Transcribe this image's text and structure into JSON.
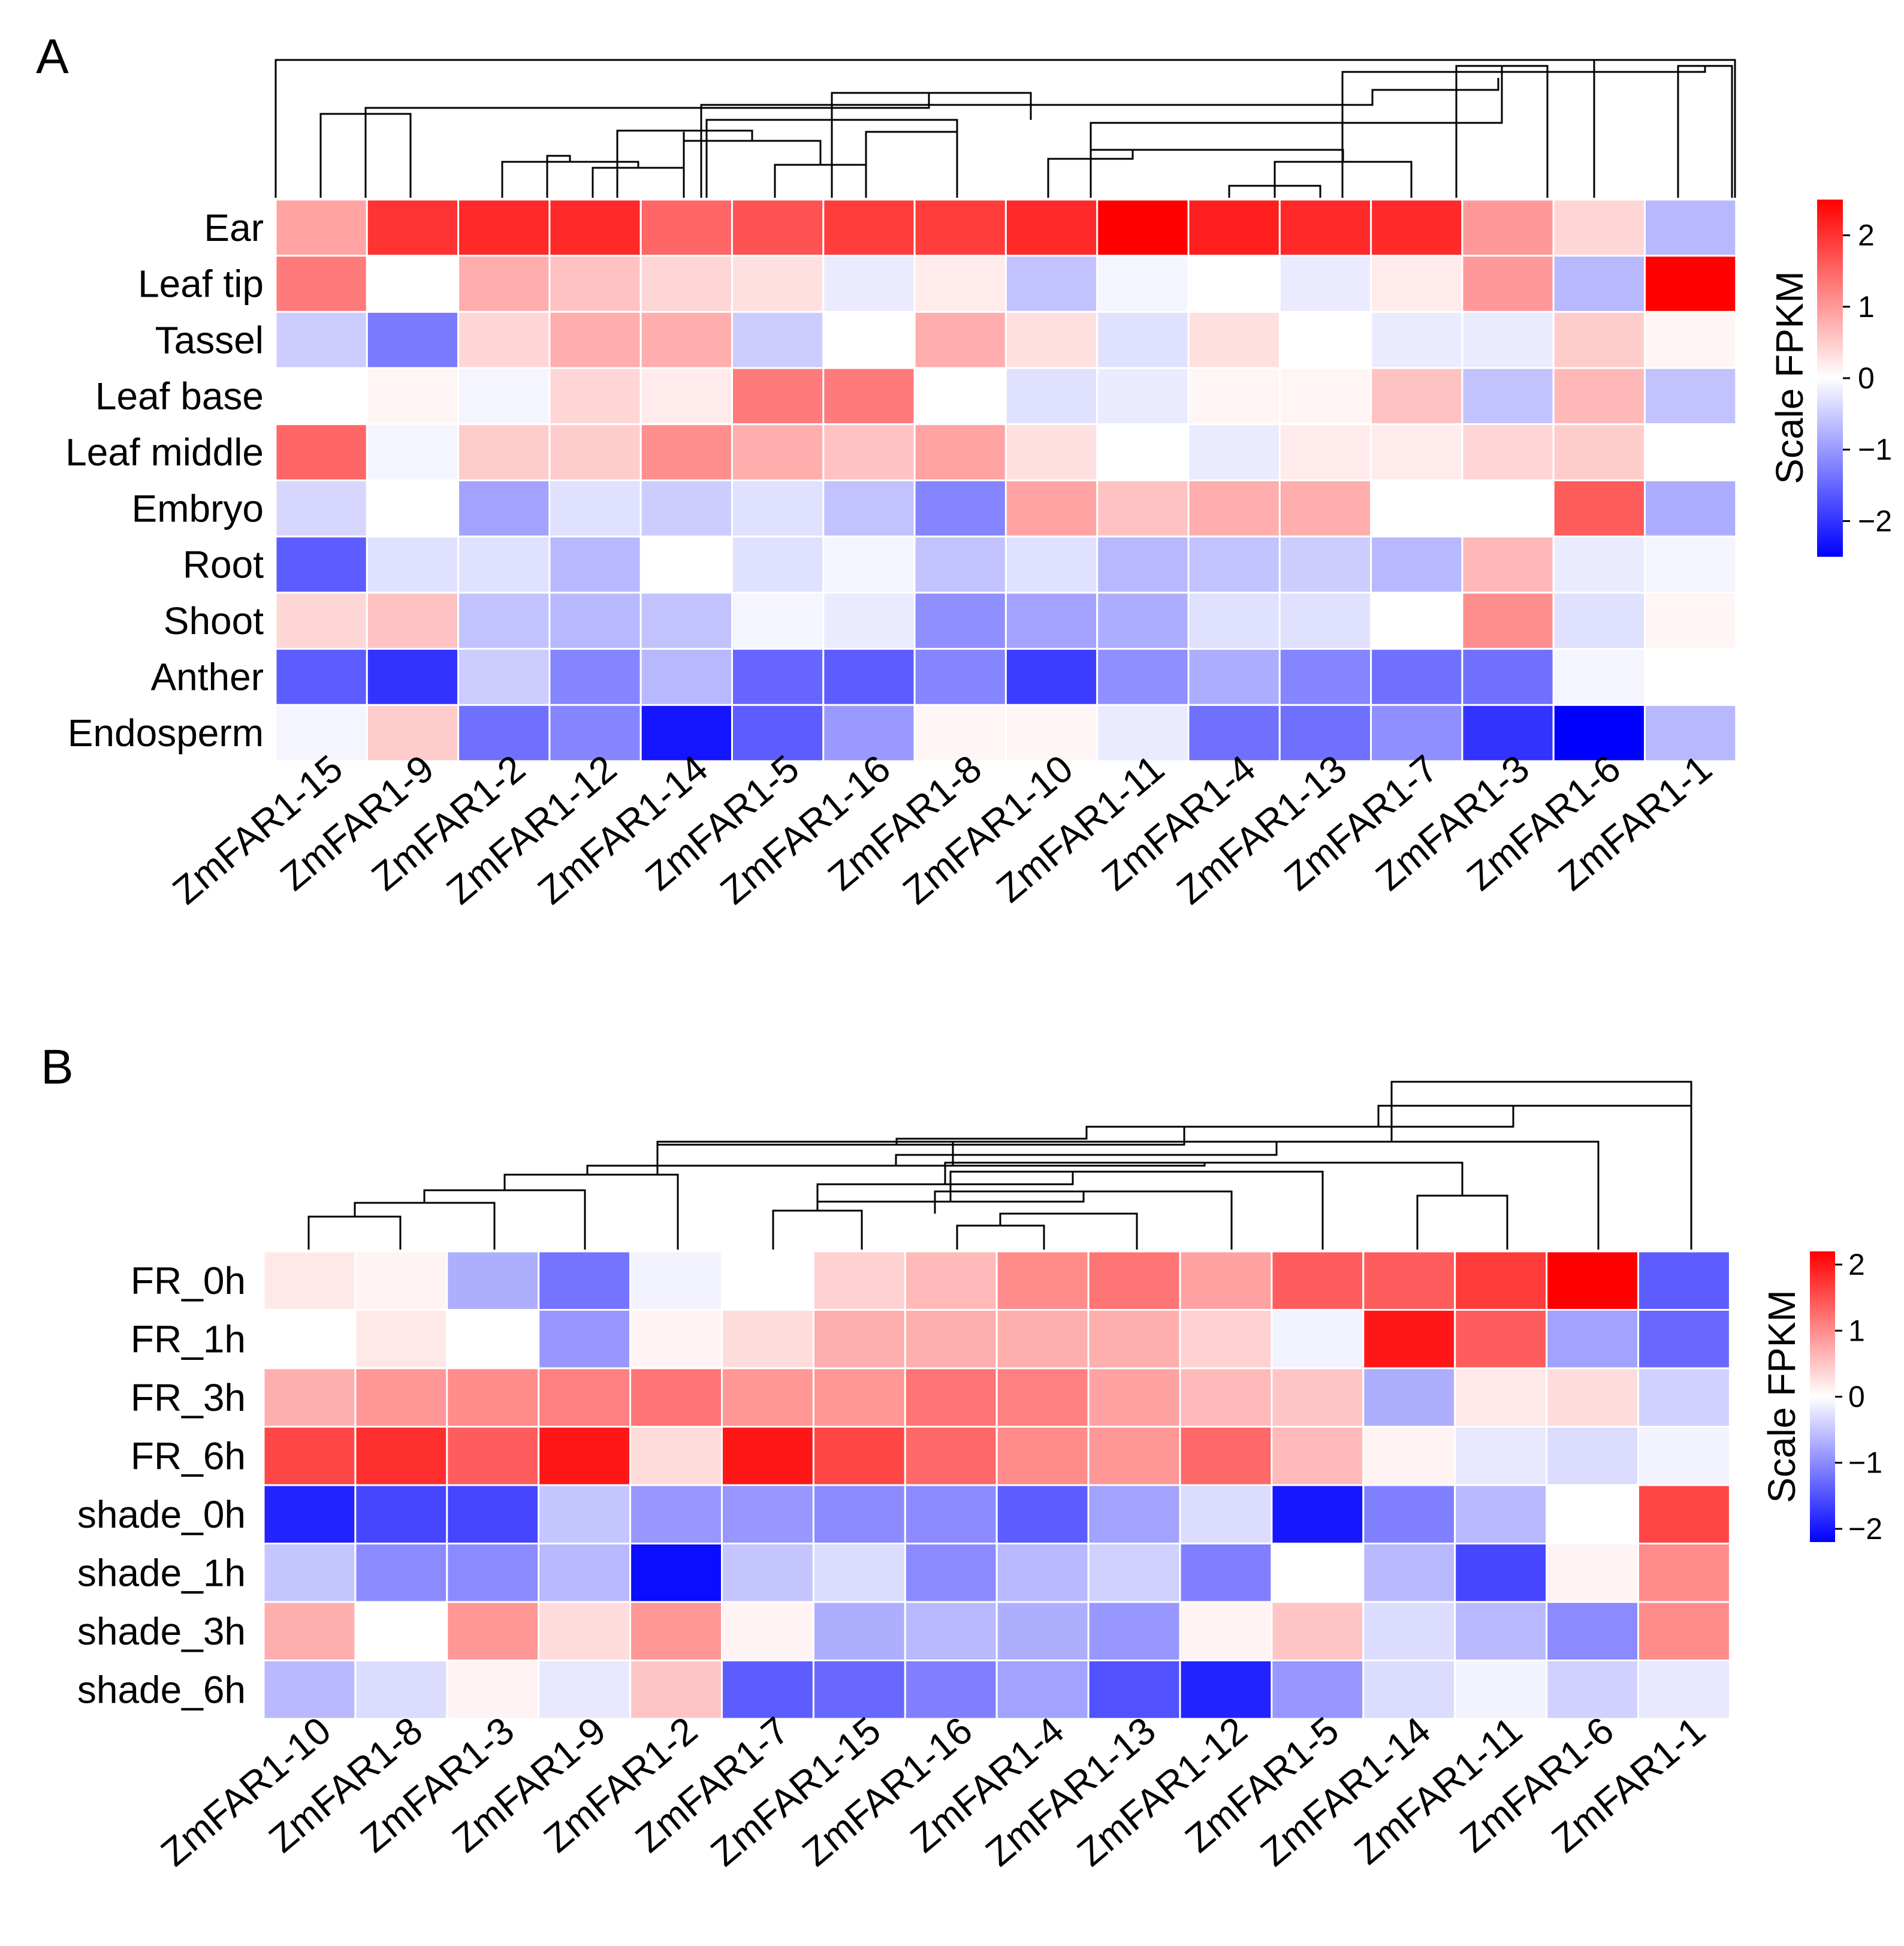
{
  "chart_data": [
    {
      "panel": "A",
      "type": "heatmap",
      "rows": [
        "Ear",
        "Leaf tip",
        "Tassel",
        "Leaf base",
        "Leaf middle",
        "Embryo",
        "Root",
        "Shoot",
        "Anther",
        "Endosperm"
      ],
      "columns": [
        "ZmFAR1-15",
        "ZmFAR1-9",
        "ZmFAR1-2",
        "ZmFAR1-12",
        "ZmFAR1-14",
        "ZmFAR1-5",
        "ZmFAR1-16",
        "ZmFAR1-8",
        "ZmFAR1-10",
        "ZmFAR1-11",
        "ZmFAR1-4",
        "ZmFAR1-13",
        "ZmFAR1-7",
        "ZmFAR1-3",
        "ZmFAR1-6",
        "ZmFAR1-1"
      ],
      "values": [
        [
          0.9,
          2.0,
          2.1,
          2.1,
          1.5,
          1.7,
          1.9,
          1.9,
          2.1,
          2.6,
          2.2,
          2.1,
          2.1,
          1.0,
          0.4,
          -0.7
        ],
        [
          1.3,
          0.0,
          0.8,
          0.6,
          0.4,
          0.3,
          -0.2,
          0.2,
          -0.6,
          -0.1,
          0.0,
          -0.2,
          0.2,
          1.0,
          -0.7,
          2.5
        ],
        [
          -0.5,
          -1.3,
          0.4,
          0.8,
          0.8,
          -0.5,
          0.0,
          0.8,
          0.3,
          -0.3,
          0.3,
          0.0,
          -0.2,
          -0.2,
          0.5,
          0.1
        ],
        [
          0.0,
          0.1,
          -0.1,
          0.4,
          0.2,
          1.3,
          1.3,
          0.0,
          -0.3,
          -0.2,
          0.1,
          0.1,
          0.6,
          -0.6,
          0.7,
          -0.6
        ],
        [
          1.5,
          -0.1,
          0.5,
          0.5,
          1.1,
          0.8,
          0.6,
          0.9,
          0.3,
          0.0,
          -0.2,
          0.2,
          0.2,
          0.4,
          0.5,
          0.0
        ],
        [
          -0.4,
          0.0,
          -0.9,
          -0.3,
          -0.5,
          -0.3,
          -0.6,
          -1.2,
          0.9,
          0.6,
          0.8,
          0.8,
          0.0,
          0.0,
          1.6,
          -0.8
        ],
        [
          -1.6,
          -0.3,
          -0.3,
          -0.7,
          0.0,
          -0.3,
          -0.1,
          -0.6,
          -0.3,
          -0.7,
          -0.6,
          -0.5,
          -0.7,
          0.7,
          -0.2,
          -0.1
        ],
        [
          0.4,
          0.6,
          -0.6,
          -0.7,
          -0.6,
          -0.1,
          -0.2,
          -1.1,
          -0.9,
          -0.8,
          -0.3,
          -0.3,
          0.0,
          1.1,
          -0.3,
          0.1
        ],
        [
          -1.6,
          -2.0,
          -0.5,
          -1.2,
          -0.7,
          -1.5,
          -1.6,
          -1.2,
          -1.9,
          -1.1,
          -0.8,
          -1.2,
          -1.4,
          -1.4,
          -0.1,
          0.0
        ],
        [
          -0.1,
          0.5,
          -1.4,
          -1.2,
          -2.3,
          -1.6,
          -1.0,
          0.1,
          0.1,
          -0.2,
          -1.4,
          -1.4,
          -1.1,
          -2.0,
          -2.6,
          -0.7
        ]
      ],
      "zlim": [
        -2.5,
        2.5
      ],
      "colorbar": {
        "title": "Scale FPKM",
        "ticks": [
          "2",
          "1",
          "0",
          "−1",
          "−2"
        ],
        "tick_values": [
          2,
          1,
          0,
          -1,
          -2
        ],
        "colors": [
          "#0000ff",
          "#ffffff",
          "#ff0000"
        ]
      }
    },
    {
      "panel": "B",
      "type": "heatmap",
      "rows": [
        "FR_0h",
        "FR_1h",
        "FR_3h",
        "FR_6h",
        "shade_0h",
        "shade_1h",
        "shade_3h",
        "shade_6h"
      ],
      "columns": [
        "ZmFAR1-10",
        "ZmFAR1-8",
        "ZmFAR1-3",
        "ZmFAR1-9",
        "ZmFAR1-2",
        "ZmFAR1-7",
        "ZmFAR1-15",
        "ZmFAR1-16",
        "ZmFAR1-4",
        "ZmFAR1-13",
        "ZmFAR1-12",
        "ZmFAR1-5",
        "ZmFAR1-14",
        "ZmFAR1-11",
        "ZmFAR1-6",
        "ZmFAR1-1"
      ],
      "values": [
        [
          0.2,
          0.1,
          -0.7,
          -1.2,
          -0.1,
          0.0,
          0.4,
          0.6,
          1.0,
          1.2,
          0.8,
          1.4,
          1.4,
          1.7,
          2.2,
          -1.4
        ],
        [
          0.0,
          0.2,
          0.0,
          -0.9,
          0.1,
          0.3,
          0.7,
          0.7,
          0.7,
          0.7,
          0.4,
          -0.1,
          2.0,
          1.4,
          -0.8,
          -1.3
        ],
        [
          0.7,
          0.9,
          1.0,
          1.1,
          1.2,
          0.9,
          0.9,
          1.2,
          1.1,
          0.8,
          0.6,
          0.5,
          -0.7,
          0.2,
          0.3,
          -0.4
        ],
        [
          1.6,
          1.8,
          1.4,
          2.0,
          0.3,
          2.0,
          1.6,
          1.3,
          1.0,
          0.9,
          1.3,
          0.6,
          0.1,
          -0.2,
          -0.3,
          -0.1
        ],
        [
          -1.9,
          -1.6,
          -1.6,
          -0.5,
          -0.9,
          -0.9,
          -1.0,
          -1.0,
          -1.4,
          -0.8,
          -0.3,
          -2.0,
          -1.1,
          -0.6,
          0.0,
          1.6
        ],
        [
          -0.5,
          -1.0,
          -1.0,
          -0.6,
          -2.1,
          -0.5,
          -0.3,
          -1.0,
          -0.6,
          -0.4,
          -1.1,
          0.0,
          -0.6,
          -1.6,
          0.1,
          1.0
        ],
        [
          0.7,
          0.0,
          0.9,
          0.3,
          0.9,
          0.1,
          -0.7,
          -0.6,
          -0.7,
          -0.9,
          0.1,
          0.5,
          -0.3,
          -0.6,
          -1.0,
          1.0
        ],
        [
          -0.6,
          -0.3,
          0.1,
          -0.2,
          0.5,
          -1.4,
          -1.3,
          -1.1,
          -0.8,
          -1.5,
          -1.9,
          -0.9,
          -0.3,
          -0.1,
          -0.4,
          -0.2
        ]
      ],
      "zlim": [
        -2.2,
        2.2
      ],
      "colorbar": {
        "title": "Scale FPKM",
        "ticks": [
          "2",
          "1",
          "0",
          "−1",
          "−2"
        ],
        "tick_values": [
          2,
          1,
          0,
          -1,
          -2
        ],
        "colors": [
          "#0000ff",
          "#ffffff",
          "#ff0000"
        ]
      }
    }
  ],
  "panels": [
    {
      "label": "A"
    },
    {
      "label": "B"
    }
  ]
}
